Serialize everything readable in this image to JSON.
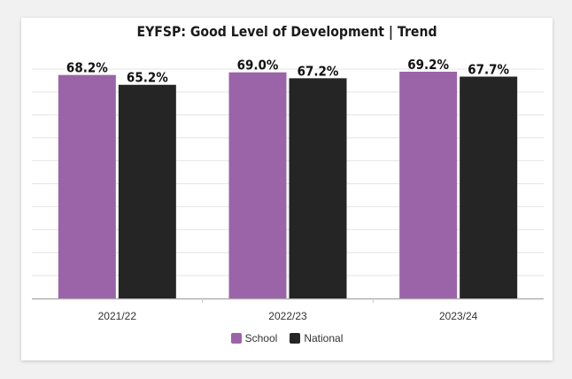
{
  "chart_data": {
    "type": "bar",
    "title": "EYFSP: Good Level of Development | Trend",
    "categories": [
      "2021/22",
      "2022/23",
      "2023/24"
    ],
    "series": [
      {
        "name": "School",
        "color": "#9b64a8",
        "values": [
          68.2,
          69.0,
          69.2
        ],
        "labels": [
          "68.2%",
          "69.0%",
          "69.2%"
        ]
      },
      {
        "name": "National",
        "color": "#252525",
        "values": [
          65.2,
          67.2,
          67.7
        ],
        "labels": [
          "65.2%",
          "67.2%",
          "67.7%"
        ]
      }
    ],
    "xlabel": "",
    "ylabel": "",
    "ylim": [
      0,
      70
    ],
    "grid": true,
    "legend_position": "bottom"
  }
}
